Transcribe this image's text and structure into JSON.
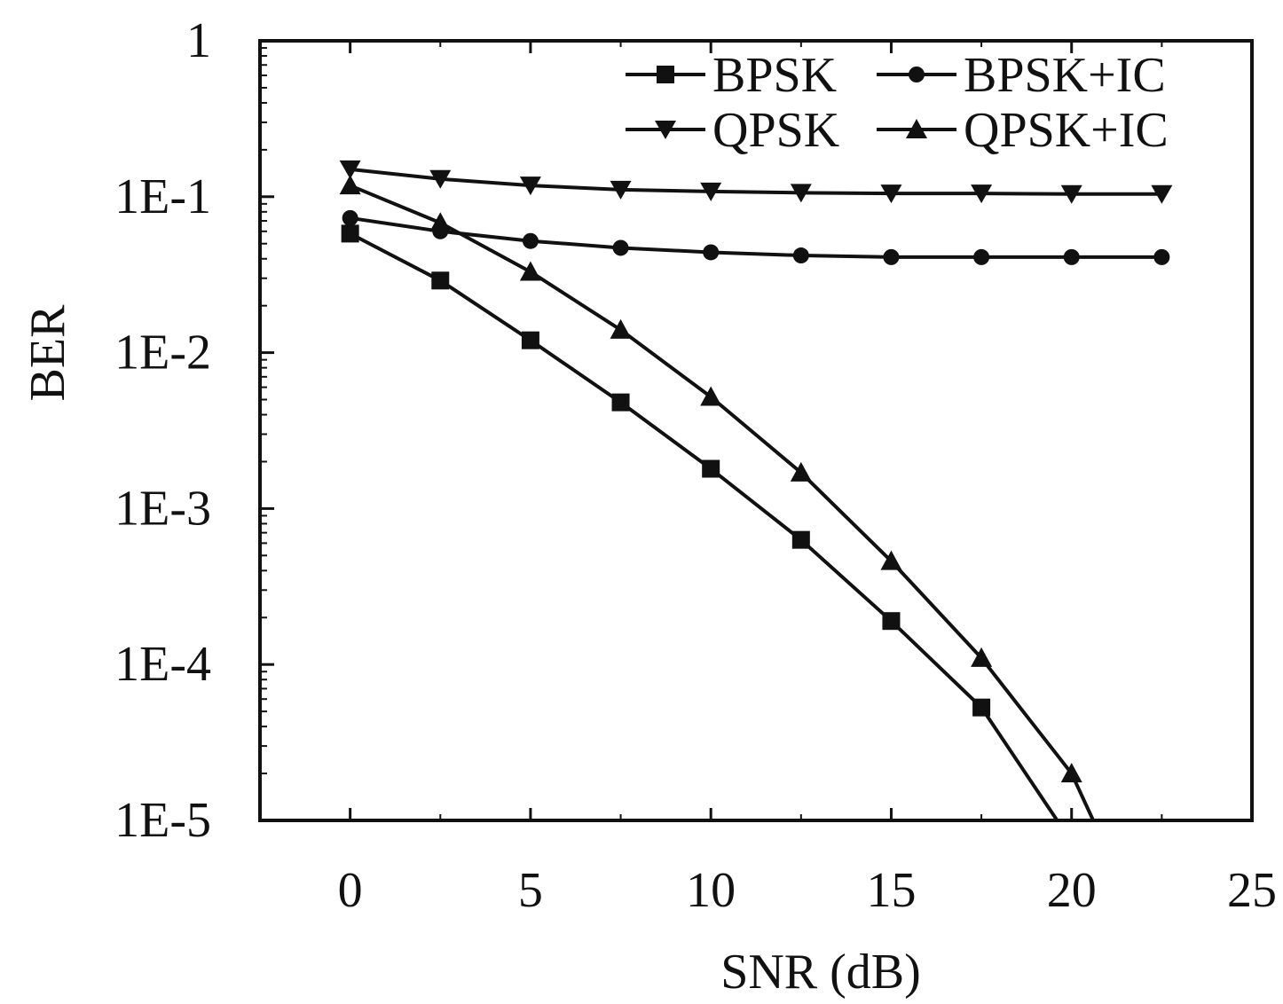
{
  "chart_data": {
    "type": "line",
    "xlabel": "SNR (dB)",
    "ylabel": "BER",
    "xlim": [
      -2.5,
      25
    ],
    "ylim": [
      1e-05,
      1
    ],
    "yscale": "log",
    "x_ticks": [
      "0",
      "5",
      "10",
      "15",
      "20",
      "25"
    ],
    "y_ticks": [
      "1E-5",
      "1E-4",
      "1E-3",
      "1E-2",
      "1E-1",
      "1"
    ],
    "grid": false,
    "legend_position": "top-right",
    "series": [
      {
        "name": "BPSK",
        "marker": "square",
        "x": [
          0,
          2.5,
          5,
          7.5,
          10,
          12.5,
          15,
          17.5,
          19.6
        ],
        "y": [
          0.058,
          0.029,
          0.012,
          0.0048,
          0.0018,
          0.00063,
          0.00019,
          5.3e-05,
          1e-05
        ]
      },
      {
        "name": "BPSK+IC",
        "marker": "circle",
        "x": [
          0,
          2.5,
          5,
          7.5,
          10,
          12.5,
          15,
          17.5,
          20,
          22.5
        ],
        "y": [
          0.073,
          0.06,
          0.052,
          0.047,
          0.044,
          0.042,
          0.041,
          0.041,
          0.041,
          0.041
        ]
      },
      {
        "name": "QPSK",
        "marker": "triangle-down",
        "x": [
          0,
          2.5,
          5,
          7.5,
          10,
          12.5,
          15,
          17.5,
          20,
          22.5
        ],
        "y": [
          0.15,
          0.13,
          0.118,
          0.111,
          0.108,
          0.106,
          0.105,
          0.105,
          0.104,
          0.104
        ]
      },
      {
        "name": "QPSK+IC",
        "marker": "triangle-up",
        "x": [
          0,
          2.5,
          5,
          7.5,
          10,
          12.5,
          15,
          17.5,
          20,
          20.6
        ],
        "y": [
          0.118,
          0.068,
          0.033,
          0.014,
          0.0052,
          0.0017,
          0.00046,
          0.00011,
          2e-05,
          1e-05
        ]
      }
    ]
  }
}
